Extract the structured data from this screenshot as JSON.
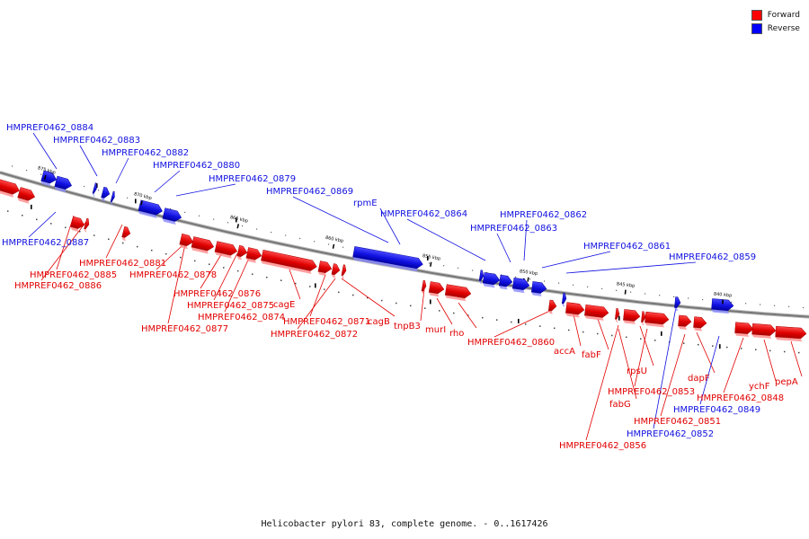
{
  "caption": "Helicobacter pylori 83, complete genome. - 0..1617426",
  "legend": [
    {
      "label": "Forward",
      "color": "#ff0000"
    },
    {
      "label": "Reverse",
      "color": "#0000ff"
    }
  ],
  "colors": {
    "forward": "#e20000",
    "reverse": "#1010e0",
    "backbone": "#777777"
  },
  "ticks": [
    "875 kbp",
    "870 kbp",
    "865 kbp",
    "860 kbp",
    "855 kbp",
    "850 kbp",
    "845 kbp",
    "840 kbp"
  ],
  "genes": [
    {
      "label": "HMPREF0462_0884",
      "strand": "reverse"
    },
    {
      "label": "HMPREF0462_0883",
      "strand": "reverse"
    },
    {
      "label": "HMPREF0462_0882",
      "strand": "reverse"
    },
    {
      "label": "HMPREF0462_0880",
      "strand": "reverse"
    },
    {
      "label": "HMPREF0462_0879",
      "strand": "reverse"
    },
    {
      "label": "HMPREF0462_0869",
      "strand": "reverse"
    },
    {
      "label": "rpmE",
      "strand": "reverse"
    },
    {
      "label": "HMPREF0462_0864",
      "strand": "reverse"
    },
    {
      "label": "HMPREF0462_0862",
      "strand": "reverse"
    },
    {
      "label": "HMPREF0462_0863",
      "strand": "reverse"
    },
    {
      "label": "HMPREF0462_0861",
      "strand": "reverse"
    },
    {
      "label": "HMPREF0462_0859",
      "strand": "reverse"
    },
    {
      "label": "HMPREF0462_0887",
      "strand": "reverse"
    },
    {
      "label": "HMPREF0462_0881",
      "strand": "forward"
    },
    {
      "label": "HMPREF0462_0885",
      "strand": "forward"
    },
    {
      "label": "HMPREF0462_0886",
      "strand": "forward"
    },
    {
      "label": "HMPREF0462_0878",
      "strand": "forward"
    },
    {
      "label": "HMPREF0462_0876",
      "strand": "forward"
    },
    {
      "label": "HMPREF0462_0875",
      "strand": "forward"
    },
    {
      "label": "cagE",
      "strand": "forward"
    },
    {
      "label": "HMPREF0462_0874",
      "strand": "forward"
    },
    {
      "label": "HMPREF0462_0877",
      "strand": "forward"
    },
    {
      "label": "HMPREF0462_0871",
      "strand": "forward"
    },
    {
      "label": "HMPREF0462_0872",
      "strand": "forward"
    },
    {
      "label": "cagB",
      "strand": "forward"
    },
    {
      "label": "tnpB3",
      "strand": "forward"
    },
    {
      "label": "murI",
      "strand": "forward"
    },
    {
      "label": "rho",
      "strand": "forward"
    },
    {
      "label": "HMPREF0462_0860",
      "strand": "forward"
    },
    {
      "label": "accA",
      "strand": "forward"
    },
    {
      "label": "fabF",
      "strand": "forward"
    },
    {
      "label": "rpsU",
      "strand": "forward"
    },
    {
      "label": "HMPREF0462_0853",
      "strand": "forward"
    },
    {
      "label": "fabG",
      "strand": "forward"
    },
    {
      "label": "dapF",
      "strand": "forward"
    },
    {
      "label": "HMPREF0462_0848",
      "strand": "forward"
    },
    {
      "label": "ychF",
      "strand": "forward"
    },
    {
      "label": "pepA",
      "strand": "forward"
    },
    {
      "label": "HMPREF0462_0849",
      "strand": "reverse"
    },
    {
      "label": "HMPREF0462_0851",
      "strand": "forward"
    },
    {
      "label": "HMPREF0462_0852",
      "strand": "reverse"
    },
    {
      "label": "HMPREF0462_0856",
      "strand": "forward"
    }
  ]
}
